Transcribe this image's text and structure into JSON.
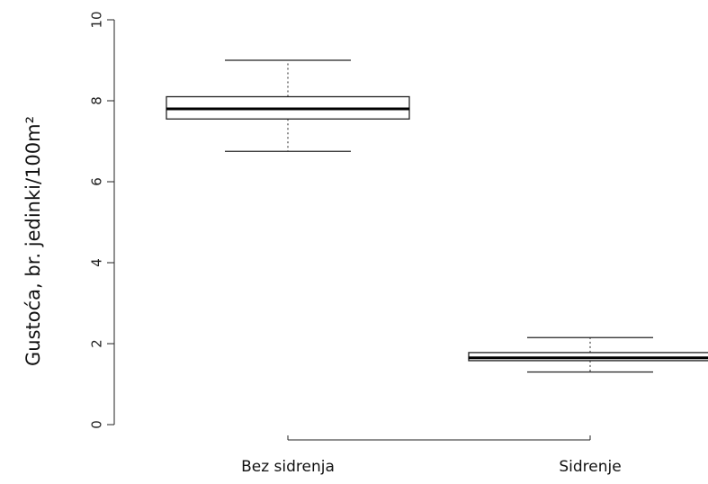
{
  "chart_data": {
    "type": "box",
    "title": "",
    "xlabel": "",
    "ylabel": "Gustoća, br. jedinki/100m²",
    "ylim": [
      0,
      10
    ],
    "yticks": [
      0,
      2,
      4,
      6,
      8,
      10
    ],
    "categories": [
      "Bez sidrenja",
      "Sidrenje"
    ],
    "boxes": [
      {
        "category": "Bez sidrenja",
        "min": 6.75,
        "q1": 7.55,
        "median": 7.8,
        "q3": 8.1,
        "max": 9.0
      },
      {
        "category": "Sidrenje",
        "min": 1.3,
        "q1": 1.58,
        "median": 1.65,
        "q3": 1.78,
        "max": 2.15
      }
    ],
    "grid": false,
    "colors": {
      "stroke": "#222222",
      "median": "#000000",
      "background": "#ffffff"
    }
  }
}
